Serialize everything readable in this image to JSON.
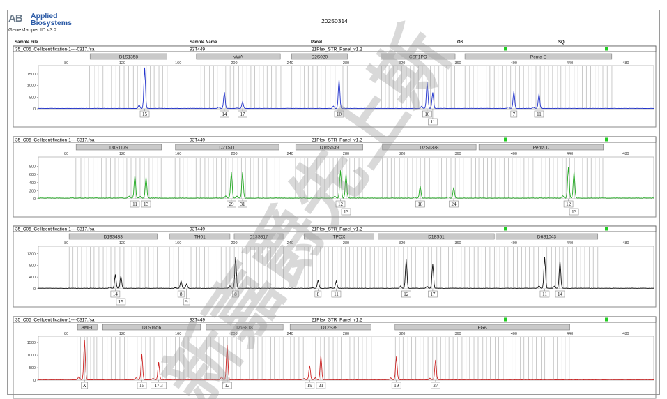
{
  "logo": {
    "mark": "AB",
    "line1": "Applied",
    "line2": "Biosystems",
    "version": "GeneMapper ID v3.2"
  },
  "date": "20250314",
  "header": {
    "sample_file": "Sample File",
    "sample_name": "Sample Name",
    "panel": "Panel",
    "os": "OS",
    "sq": "SQ"
  },
  "watermark": "新嘉爵先上斯",
  "chart_data": [
    {
      "type": "line",
      "color": "#2233cc",
      "sample_file": "35_C05_CellIdentification-1----0317.fsa",
      "sample_name": "93T449",
      "panel": "21Plex_STR_Panel_v1.2",
      "xlim": [
        60,
        500
      ],
      "x_ticks": [
        80,
        120,
        160,
        200,
        240,
        280,
        320,
        360,
        400,
        440,
        480
      ],
      "ylim": [
        0,
        1800
      ],
      "y_ticks": [
        0,
        500,
        1000,
        1500
      ],
      "loci": [
        {
          "name": "D1S1358",
          "start": 97,
          "end": 152
        },
        {
          "name": "vWA",
          "start": 173,
          "end": 233
        },
        {
          "name": "D2S020",
          "start": 241,
          "end": 281
        },
        {
          "name": "CSF1PO",
          "start": 305,
          "end": 358
        },
        {
          "name": "Penta E",
          "start": 365,
          "end": 470
        }
      ],
      "peaks": [
        {
          "x": 136,
          "h": 1750,
          "allele": "15"
        },
        {
          "x": 193,
          "h": 700,
          "allele": "14"
        },
        {
          "x": 206,
          "h": 280,
          "allele": "17"
        },
        {
          "x": 275,
          "h": 1250,
          "allele": "10"
        },
        {
          "x": 338,
          "h": 1080,
          "allele": "10"
        },
        {
          "x": 342,
          "h": 680,
          "allele": "11"
        },
        {
          "x": 400,
          "h": 730,
          "allele": "7"
        },
        {
          "x": 418,
          "h": 630,
          "allele": "11"
        }
      ]
    },
    {
      "type": "line",
      "color": "#22aa22",
      "sample_file": "35_C05_CellIdentification-1----0317.fsa",
      "sample_name": "93T449",
      "panel": "21Plex_STR_Panel_v1.2",
      "xlim": [
        60,
        500
      ],
      "x_ticks": [
        80,
        120,
        160,
        200,
        240,
        280,
        320,
        360,
        400,
        440,
        480
      ],
      "ylim": [
        0,
        1000
      ],
      "y_ticks": [
        0,
        200,
        400,
        600,
        800
      ],
      "loci": [
        {
          "name": "D8S1179",
          "start": 87,
          "end": 148
        },
        {
          "name": "D21S11",
          "start": 158,
          "end": 232
        },
        {
          "name": "D16S539",
          "start": 244,
          "end": 292
        },
        {
          "name": "D2S1338",
          "start": 306,
          "end": 373
        },
        {
          "name": "Penta D",
          "start": 375,
          "end": 464
        }
      ],
      "peaks": [
        {
          "x": 129,
          "h": 560,
          "allele": "11"
        },
        {
          "x": 137,
          "h": 520,
          "allele": "13"
        },
        {
          "x": 198,
          "h": 650,
          "allele": "29"
        },
        {
          "x": 206,
          "h": 630,
          "allele": "31"
        },
        {
          "x": 276,
          "h": 640,
          "allele": "12"
        },
        {
          "x": 280,
          "h": 600,
          "allele": "13"
        },
        {
          "x": 333,
          "h": 300,
          "allele": "18"
        },
        {
          "x": 357,
          "h": 260,
          "allele": "24"
        },
        {
          "x": 439,
          "h": 720,
          "allele": "12"
        },
        {
          "x": 443,
          "h": 660,
          "allele": "13"
        }
      ]
    },
    {
      "type": "line",
      "color": "#111111",
      "sample_file": "35_C05_CellIdentification-1----0317.fsa",
      "sample_name": "93T449",
      "panel": "21Plex_STR_Panel_v1.2",
      "xlim": [
        60,
        500
      ],
      "x_ticks": [
        80,
        120,
        160,
        200,
        240,
        280,
        320,
        360,
        400,
        440,
        480
      ],
      "ylim": [
        0,
        1400
      ],
      "y_ticks": [
        0,
        400,
        800,
        1200
      ],
      "loci": [
        {
          "name": "D19S433",
          "start": 82,
          "end": 145
        },
        {
          "name": "TH01",
          "start": 154,
          "end": 197
        },
        {
          "name": "D13S317",
          "start": 200,
          "end": 235
        },
        {
          "name": "TPOX",
          "start": 250,
          "end": 300
        },
        {
          "name": "D18S51",
          "start": 303,
          "end": 386
        },
        {
          "name": "D6S1043",
          "start": 387,
          "end": 460
        }
      ],
      "peaks": [
        {
          "x": 115,
          "h": 430,
          "allele": "14"
        },
        {
          "x": 119,
          "h": 420,
          "allele": "15"
        },
        {
          "x": 162,
          "h": 240,
          "allele": "8"
        },
        {
          "x": 166,
          "h": 150,
          "allele": "9"
        },
        {
          "x": 201,
          "h": 1060,
          "allele": "8"
        },
        {
          "x": 260,
          "h": 280,
          "allele": "8"
        },
        {
          "x": 273,
          "h": 250,
          "allele": "11"
        },
        {
          "x": 323,
          "h": 990,
          "allele": "12"
        },
        {
          "x": 342,
          "h": 820,
          "allele": "17"
        },
        {
          "x": 422,
          "h": 1060,
          "allele": "11"
        },
        {
          "x": 433,
          "h": 930,
          "allele": "14"
        }
      ]
    },
    {
      "type": "line",
      "color": "#cc2222",
      "sample_file": "35_C05_CellIdentification-1----0317.fsa",
      "sample_name": "93T449",
      "panel": "21Plex_STR_Panel_v1.2",
      "xlim": [
        60,
        500
      ],
      "x_ticks": [
        80,
        120,
        160,
        200,
        240,
        280,
        320,
        360,
        400,
        440,
        480
      ],
      "ylim": [
        0,
        1700
      ],
      "y_ticks": [
        0,
        500,
        1000,
        1500
      ],
      "loci": [
        {
          "name": "AMEL",
          "start": 88,
          "end": 102
        },
        {
          "name": "D1S1656",
          "start": 106,
          "end": 176
        },
        {
          "name": "D5S818",
          "start": 180,
          "end": 235
        },
        {
          "name": "D12S391",
          "start": 240,
          "end": 298
        },
        {
          "name": "FGA",
          "start": 315,
          "end": 440
        }
      ],
      "peaks": [
        {
          "x": 93,
          "h": 1570,
          "allele": "X"
        },
        {
          "x": 134,
          "h": 1010,
          "allele": "15"
        },
        {
          "x": 146,
          "h": 700,
          "allele": "17.3"
        },
        {
          "x": 195,
          "h": 1380,
          "allele": "12"
        },
        {
          "x": 254,
          "h": 570,
          "allele": "19"
        },
        {
          "x": 262,
          "h": 960,
          "allele": "21"
        },
        {
          "x": 316,
          "h": 920,
          "allele": "19"
        },
        {
          "x": 344,
          "h": 790,
          "allele": "27"
        }
      ]
    }
  ]
}
